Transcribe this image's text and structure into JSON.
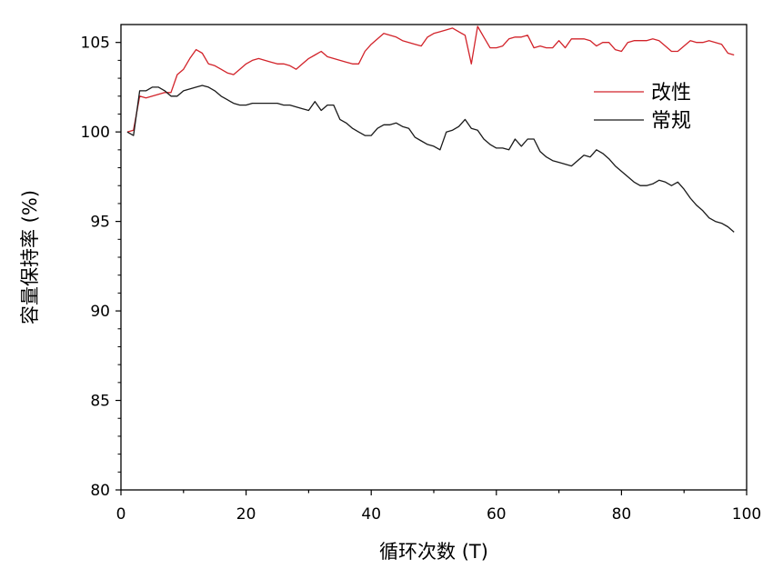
{
  "chart_data": {
    "type": "line",
    "xlabel": "循环次数 (T)",
    "ylabel": "容量保持率 (%)",
    "xlim": [
      0,
      100
    ],
    "ylim": [
      80,
      106
    ],
    "x_ticks": [
      0,
      20,
      40,
      60,
      80,
      100
    ],
    "x_tick_labels": [
      "0",
      "20",
      "40",
      "60",
      "80",
      "100"
    ],
    "y_ticks": [
      80,
      85,
      90,
      95,
      100,
      105
    ],
    "y_tick_labels": [
      "80",
      "85",
      "90",
      "95",
      "100",
      "105"
    ],
    "grid": false,
    "legend_position": "top-right",
    "series": [
      {
        "name": "改性",
        "color": "#d2232a",
        "x": [
          1,
          2,
          3,
          4,
          5,
          6,
          7,
          8,
          9,
          10,
          11,
          12,
          13,
          14,
          15,
          16,
          17,
          18,
          19,
          20,
          21,
          22,
          23,
          24,
          25,
          26,
          27,
          28,
          29,
          30,
          31,
          32,
          33,
          34,
          35,
          36,
          37,
          38,
          39,
          40,
          41,
          42,
          43,
          44,
          45,
          46,
          47,
          48,
          49,
          50,
          51,
          52,
          53,
          54,
          55,
          56,
          57,
          58,
          59,
          60,
          61,
          62,
          63,
          64,
          65,
          66,
          67,
          68,
          69,
          70,
          71,
          72,
          73,
          74,
          75,
          76,
          77,
          78,
          79,
          80,
          81,
          82,
          83,
          84,
          85,
          86,
          87,
          88,
          89,
          90,
          91,
          92,
          93,
          94,
          95,
          96,
          97,
          98
        ],
        "values": [
          100.0,
          100.1,
          102.0,
          101.9,
          102.0,
          102.1,
          102.2,
          102.2,
          103.2,
          103.5,
          104.1,
          104.6,
          104.4,
          103.8,
          103.7,
          103.5,
          103.3,
          103.2,
          103.5,
          103.8,
          104.0,
          104.1,
          104.0,
          103.9,
          103.8,
          103.8,
          103.7,
          103.5,
          103.8,
          104.1,
          104.3,
          104.5,
          104.2,
          104.1,
          104.0,
          103.9,
          103.8,
          103.8,
          104.5,
          104.9,
          105.2,
          105.5,
          105.4,
          105.3,
          105.1,
          105.0,
          104.9,
          104.8,
          105.3,
          105.5,
          105.6,
          105.7,
          105.8,
          105.6,
          105.4,
          103.8,
          105.9,
          105.3,
          104.7,
          104.7,
          104.8,
          105.2,
          105.3,
          105.3,
          105.4,
          104.7,
          104.8,
          104.7,
          104.7,
          105.1,
          104.7,
          105.2,
          105.2,
          105.2,
          105.1,
          104.8,
          105.0,
          105.0,
          104.6,
          104.5,
          105.0,
          105.1,
          105.1,
          105.1,
          105.2,
          105.1,
          104.8,
          104.5,
          104.5,
          104.8,
          105.1,
          105.0,
          105.0,
          105.1,
          105.0,
          104.9,
          104.4,
          104.3
        ]
      },
      {
        "name": "常规",
        "color": "#1a1a1a",
        "x": [
          1,
          2,
          3,
          4,
          5,
          6,
          7,
          8,
          9,
          10,
          11,
          12,
          13,
          14,
          15,
          16,
          17,
          18,
          19,
          20,
          21,
          22,
          23,
          24,
          25,
          26,
          27,
          28,
          29,
          30,
          31,
          32,
          33,
          34,
          35,
          36,
          37,
          38,
          39,
          40,
          41,
          42,
          43,
          44,
          45,
          46,
          47,
          48,
          49,
          50,
          51,
          52,
          53,
          54,
          55,
          56,
          57,
          58,
          59,
          60,
          61,
          62,
          63,
          64,
          65,
          66,
          67,
          68,
          69,
          70,
          71,
          72,
          73,
          74,
          75,
          76,
          77,
          78,
          79,
          80,
          81,
          82,
          83,
          84,
          85,
          86,
          87,
          88,
          89,
          90,
          91,
          92,
          93,
          94,
          95,
          96,
          97,
          98
        ],
        "values": [
          100.0,
          99.8,
          102.3,
          102.3,
          102.5,
          102.5,
          102.3,
          102.0,
          102.0,
          102.3,
          102.4,
          102.5,
          102.6,
          102.5,
          102.3,
          102.0,
          101.8,
          101.6,
          101.5,
          101.5,
          101.6,
          101.6,
          101.6,
          101.6,
          101.6,
          101.5,
          101.5,
          101.4,
          101.3,
          101.2,
          101.7,
          101.2,
          101.5,
          101.5,
          100.7,
          100.5,
          100.2,
          100.0,
          99.8,
          99.8,
          100.2,
          100.4,
          100.4,
          100.5,
          100.3,
          100.2,
          99.7,
          99.5,
          99.3,
          99.2,
          99.0,
          100.0,
          100.1,
          100.3,
          100.7,
          100.2,
          100.1,
          99.6,
          99.3,
          99.1,
          99.1,
          99.0,
          99.6,
          99.2,
          99.6,
          99.6,
          98.9,
          98.6,
          98.4,
          98.3,
          98.2,
          98.1,
          98.4,
          98.7,
          98.6,
          99.0,
          98.8,
          98.5,
          98.1,
          97.8,
          97.5,
          97.2,
          97.0,
          97.0,
          97.1,
          97.3,
          97.2,
          97.0,
          97.2,
          96.8,
          96.3,
          95.9,
          95.6,
          95.2,
          95.0,
          94.9,
          94.7,
          94.4
        ]
      }
    ]
  }
}
